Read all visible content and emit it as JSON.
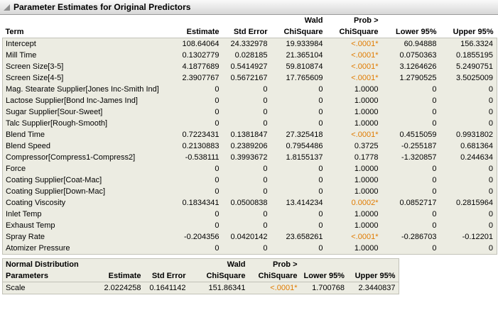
{
  "window": {
    "title": "Parameter Estimates for Original Predictors"
  },
  "colors": {
    "significant_p": "#e07b00"
  },
  "main_table": {
    "headers": {
      "term": "Term",
      "estimate": "Estimate",
      "std_error": "Std Error",
      "wald_top": "Wald",
      "wald_bottom": "ChiSquare",
      "prob_top": "Prob >",
      "prob_bottom": "ChiSquare",
      "lower": "Lower 95%",
      "upper": "Upper 95%"
    },
    "rows": [
      {
        "term": "Intercept",
        "estimate": "108.64064",
        "std_error": "24.332978",
        "chisquare": "19.933984",
        "prob": "<.0001*",
        "sig": true,
        "lower": "60.94888",
        "upper": "156.3324"
      },
      {
        "term": "Mill Time",
        "estimate": "0.1302779",
        "std_error": "0.028185",
        "chisquare": "21.365104",
        "prob": "<.0001*",
        "sig": true,
        "lower": "0.0750363",
        "upper": "0.1855195"
      },
      {
        "term": "Screen Size[3-5]",
        "estimate": "4.1877689",
        "std_error": "0.5414927",
        "chisquare": "59.810874",
        "prob": "<.0001*",
        "sig": true,
        "lower": "3.1264626",
        "upper": "5.2490751"
      },
      {
        "term": "Screen Size[4-5]",
        "estimate": "2.3907767",
        "std_error": "0.5672167",
        "chisquare": "17.765609",
        "prob": "<.0001*",
        "sig": true,
        "lower": "1.2790525",
        "upper": "3.5025009"
      },
      {
        "term": "Mag. Stearate Supplier[Jones Inc-Smith Ind]",
        "estimate": "0",
        "std_error": "0",
        "chisquare": "0",
        "prob": "1.0000",
        "sig": false,
        "lower": "0",
        "upper": "0"
      },
      {
        "term": "Lactose Supplier[Bond Inc-James Ind]",
        "estimate": "0",
        "std_error": "0",
        "chisquare": "0",
        "prob": "1.0000",
        "sig": false,
        "lower": "0",
        "upper": "0"
      },
      {
        "term": "Sugar Supplier[Sour-Sweet]",
        "estimate": "0",
        "std_error": "0",
        "chisquare": "0",
        "prob": "1.0000",
        "sig": false,
        "lower": "0",
        "upper": "0"
      },
      {
        "term": "Talc Supplier[Rough-Smooth]",
        "estimate": "0",
        "std_error": "0",
        "chisquare": "0",
        "prob": "1.0000",
        "sig": false,
        "lower": "0",
        "upper": "0"
      },
      {
        "term": "Blend Time",
        "estimate": "0.7223431",
        "std_error": "0.1381847",
        "chisquare": "27.325418",
        "prob": "<.0001*",
        "sig": true,
        "lower": "0.4515059",
        "upper": "0.9931802"
      },
      {
        "term": "Blend Speed",
        "estimate": "0.2130883",
        "std_error": "0.2389206",
        "chisquare": "0.7954486",
        "prob": "0.3725",
        "sig": false,
        "lower": "-0.255187",
        "upper": "0.681364"
      },
      {
        "term": "Compressor[Compress1-Compress2]",
        "estimate": "-0.538111",
        "std_error": "0.3993672",
        "chisquare": "1.8155137",
        "prob": "0.1778",
        "sig": false,
        "lower": "-1.320857",
        "upper": "0.244634"
      },
      {
        "term": "Force",
        "estimate": "0",
        "std_error": "0",
        "chisquare": "0",
        "prob": "1.0000",
        "sig": false,
        "lower": "0",
        "upper": "0"
      },
      {
        "term": "Coating Supplier[Coat-Mac]",
        "estimate": "0",
        "std_error": "0",
        "chisquare": "0",
        "prob": "1.0000",
        "sig": false,
        "lower": "0",
        "upper": "0"
      },
      {
        "term": "Coating Supplier[Down-Mac]",
        "estimate": "0",
        "std_error": "0",
        "chisquare": "0",
        "prob": "1.0000",
        "sig": false,
        "lower": "0",
        "upper": "0"
      },
      {
        "term": "Coating Viscosity",
        "estimate": "0.1834341",
        "std_error": "0.0500838",
        "chisquare": "13.414234",
        "prob": "0.0002*",
        "sig": true,
        "lower": "0.0852717",
        "upper": "0.2815964"
      },
      {
        "term": "Inlet Temp",
        "estimate": "0",
        "std_error": "0",
        "chisquare": "0",
        "prob": "1.0000",
        "sig": false,
        "lower": "0",
        "upper": "0"
      },
      {
        "term": "Exhaust Temp",
        "estimate": "0",
        "std_error": "0",
        "chisquare": "0",
        "prob": "1.0000",
        "sig": false,
        "lower": "0",
        "upper": "0"
      },
      {
        "term": "Spray Rate",
        "estimate": "-0.204356",
        "std_error": "0.0420142",
        "chisquare": "23.658261",
        "prob": "<.0001*",
        "sig": true,
        "lower": "-0.286703",
        "upper": "-0.12201"
      },
      {
        "term": "Atomizer Pressure",
        "estimate": "0",
        "std_error": "0",
        "chisquare": "0",
        "prob": "1.0000",
        "sig": false,
        "lower": "0",
        "upper": "0"
      }
    ]
  },
  "normal_table": {
    "label_line1": "Normal Distribution",
    "label_line2": "Parameters",
    "headers": {
      "estimate": "Estimate",
      "std_error": "Std Error",
      "wald_top": "Wald",
      "wald_bottom": "ChiSquare",
      "prob_top": "Prob >",
      "prob_bottom": "ChiSquare",
      "lower": "Lower 95%",
      "upper": "Upper 95%"
    },
    "row": {
      "term": "Scale",
      "estimate": "2.0224258",
      "std_error": "0.1641142",
      "chisquare": "151.86341",
      "prob": "<.0001*",
      "sig": true,
      "lower": "1.700768",
      "upper": "2.3440837"
    }
  }
}
